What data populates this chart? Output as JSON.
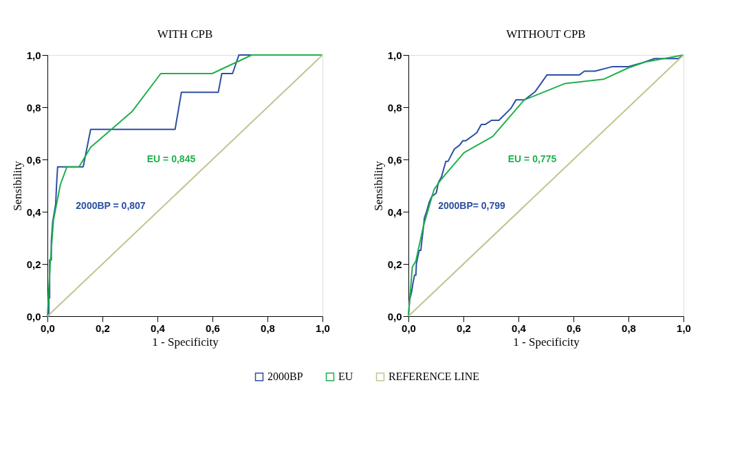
{
  "chart_data": [
    {
      "type": "line",
      "title": "WITH CPB",
      "xlabel": "1 -  Specificity",
      "ylabel": "Sensibility",
      "xlim": [
        0,
        1
      ],
      "ylim": [
        0,
        1
      ],
      "xticks": [
        {
          "value": 0,
          "label": "0,0"
        },
        {
          "value": 0.2,
          "label": "0,2"
        },
        {
          "value": 0.4,
          "label": "0,4"
        },
        {
          "value": 0.6,
          "label": "0,6"
        },
        {
          "value": 0.8,
          "label": "0,8"
        },
        {
          "value": 1,
          "label": "1,0"
        }
      ],
      "yticks": [
        {
          "value": 0,
          "label": "0,0"
        },
        {
          "value": 0.2,
          "label": "0,2"
        },
        {
          "value": 0.4,
          "label": "0,4"
        },
        {
          "value": 0.6,
          "label": "0,6"
        },
        {
          "value": 0.8,
          "label": "0,8"
        },
        {
          "value": 1,
          "label": "1,0"
        }
      ],
      "grid": false,
      "legend": "bottom",
      "marker": "none",
      "line_style": "solid",
      "series": [
        {
          "name": "2000BP",
          "color": "#2b4ea2",
          "x": [
            0,
            0.005,
            0.005,
            0.008,
            0.008,
            0.014,
            0.014,
            0.019,
            0.03,
            0.033,
            0.037,
            0.13,
            0.157,
            0.464,
            0.487,
            0.621,
            0.634,
            0.673,
            0.696,
            1
          ],
          "values": [
            0,
            0,
            0.07,
            0.07,
            0.215,
            0.215,
            0.285,
            0.36,
            0.43,
            0.5,
            0.572,
            0.572,
            0.715,
            0.715,
            0.857,
            0.857,
            0.929,
            0.929,
            1,
            1
          ]
        },
        {
          "name": "EU",
          "color": "#1db04b",
          "x": [
            0,
            0.01,
            0.022,
            0.047,
            0.071,
            0.115,
            0.157,
            0.309,
            0.412,
            0.599,
            0.743,
            1
          ],
          "values": [
            0,
            0.2,
            0.368,
            0.504,
            0.572,
            0.572,
            0.647,
            0.785,
            0.929,
            0.929,
            1,
            1
          ]
        },
        {
          "name": "REFERENCE LINE",
          "color": "#c3c38f",
          "x": [
            0,
            1
          ],
          "values": [
            0,
            1
          ]
        }
      ],
      "annotations": [
        "2000BP = 0,807",
        "EU = 0,845"
      ]
    },
    {
      "type": "line",
      "title": "WITHOUT CPB",
      "xlabel": "1 -  Specificity",
      "ylabel": "Sensibility",
      "xlim": [
        0,
        1
      ],
      "ylim": [
        0,
        1
      ],
      "xticks": [
        {
          "value": 0,
          "label": "0,0"
        },
        {
          "value": 0.2,
          "label": "0,2"
        },
        {
          "value": 0.4,
          "label": "0,4"
        },
        {
          "value": 0.6,
          "label": "0,6"
        },
        {
          "value": 0.8,
          "label": "0,8"
        },
        {
          "value": 1,
          "label": "1,0"
        }
      ],
      "yticks": [
        {
          "value": 0,
          "label": "0,0"
        },
        {
          "value": 0.2,
          "label": "0,2"
        },
        {
          "value": 0.4,
          "label": "0,4"
        },
        {
          "value": 0.6,
          "label": "0,6"
        },
        {
          "value": 0.8,
          "label": "0,8"
        },
        {
          "value": 1,
          "label": "1,0"
        }
      ],
      "grid": false,
      "marker": "none",
      "line_style": "solid",
      "series": [
        {
          "name": "2000BP",
          "color": "#2b4ea2",
          "x": [
            0,
            0.004,
            0.012,
            0.016,
            0.022,
            0.027,
            0.029,
            0.039,
            0.045,
            0.048,
            0.054,
            0.058,
            0.066,
            0.076,
            0.085,
            0.101,
            0.109,
            0.12,
            0.136,
            0.144,
            0.167,
            0.186,
            0.198,
            0.209,
            0.248,
            0.265,
            0.279,
            0.302,
            0.329,
            0.372,
            0.391,
            0.422,
            0.461,
            0.504,
            0.622,
            0.64,
            0.678,
            0.74,
            0.798,
            0.853,
            0.895,
            0.981,
            1
          ],
          "values": [
            0,
            0.062,
            0.095,
            0.124,
            0.157,
            0.157,
            0.202,
            0.252,
            0.252,
            0.281,
            0.335,
            0.376,
            0.401,
            0.438,
            0.459,
            0.471,
            0.512,
            0.533,
            0.593,
            0.593,
            0.64,
            0.655,
            0.672,
            0.672,
            0.702,
            0.734,
            0.734,
            0.75,
            0.75,
            0.795,
            0.828,
            0.828,
            0.86,
            0.924,
            0.924,
            0.938,
            0.938,
            0.955,
            0.955,
            0.971,
            0.986,
            0.986,
            1
          ]
        },
        {
          "name": "EU",
          "color": "#1db04b",
          "x": [
            0,
            0.014,
            0.027,
            0.054,
            0.093,
            0.12,
            0.202,
            0.306,
            0.421,
            0.57,
            0.709,
            0.798,
            0.86,
            1
          ],
          "values": [
            0,
            0.188,
            0.211,
            0.343,
            0.485,
            0.525,
            0.626,
            0.688,
            0.828,
            0.891,
            0.907,
            0.95,
            0.973,
            1
          ]
        },
        {
          "name": "REFERENCE LINE",
          "color": "#c3c38f",
          "x": [
            0,
            1
          ],
          "values": [
            0,
            1
          ]
        }
      ],
      "annotations": [
        "2000BP= 0,799",
        "EU = 0,775"
      ]
    }
  ]
}
